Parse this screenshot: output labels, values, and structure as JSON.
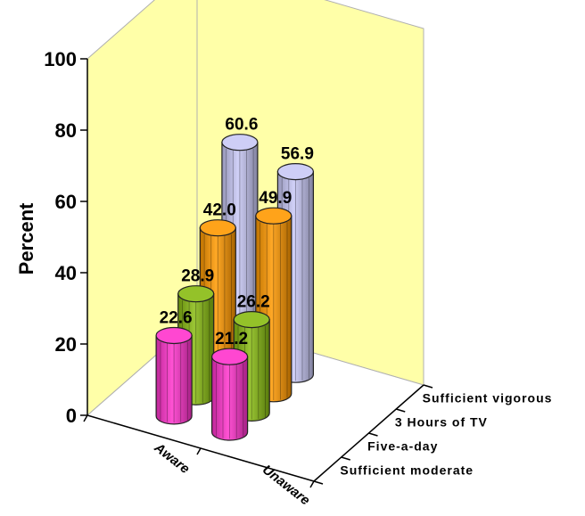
{
  "chart_data": {
    "type": "bar",
    "style": "3d-cylinder",
    "ylabel": "Percent",
    "ylim": [
      0,
      100
    ],
    "yticks": [
      "0",
      "20",
      "40",
      "60",
      "80",
      "100"
    ],
    "categories": [
      "Aware",
      "Unaware"
    ],
    "series": [
      {
        "name": "Sufficient moderate",
        "color": "#ff33cc",
        "values": [
          22.6,
          21.2
        ],
        "labels": [
          "22.6",
          "21.2"
        ]
      },
      {
        "name": "Five-a-day",
        "color": "#88bb11",
        "values": [
          28.9,
          26.2
        ],
        "labels": [
          "28.9",
          "26.2"
        ]
      },
      {
        "name": "3 Hours of TV",
        "color": "#ff9900",
        "values": [
          42.0,
          49.9
        ],
        "labels": [
          "42.0",
          "49.9"
        ]
      },
      {
        "name": "Sufficient vigorous",
        "color": "#c8c8f5",
        "values": [
          60.6,
          56.9
        ],
        "labels": [
          "60.6",
          "56.9"
        ]
      }
    ],
    "wall_color": "#ffffa8",
    "grid": false
  }
}
